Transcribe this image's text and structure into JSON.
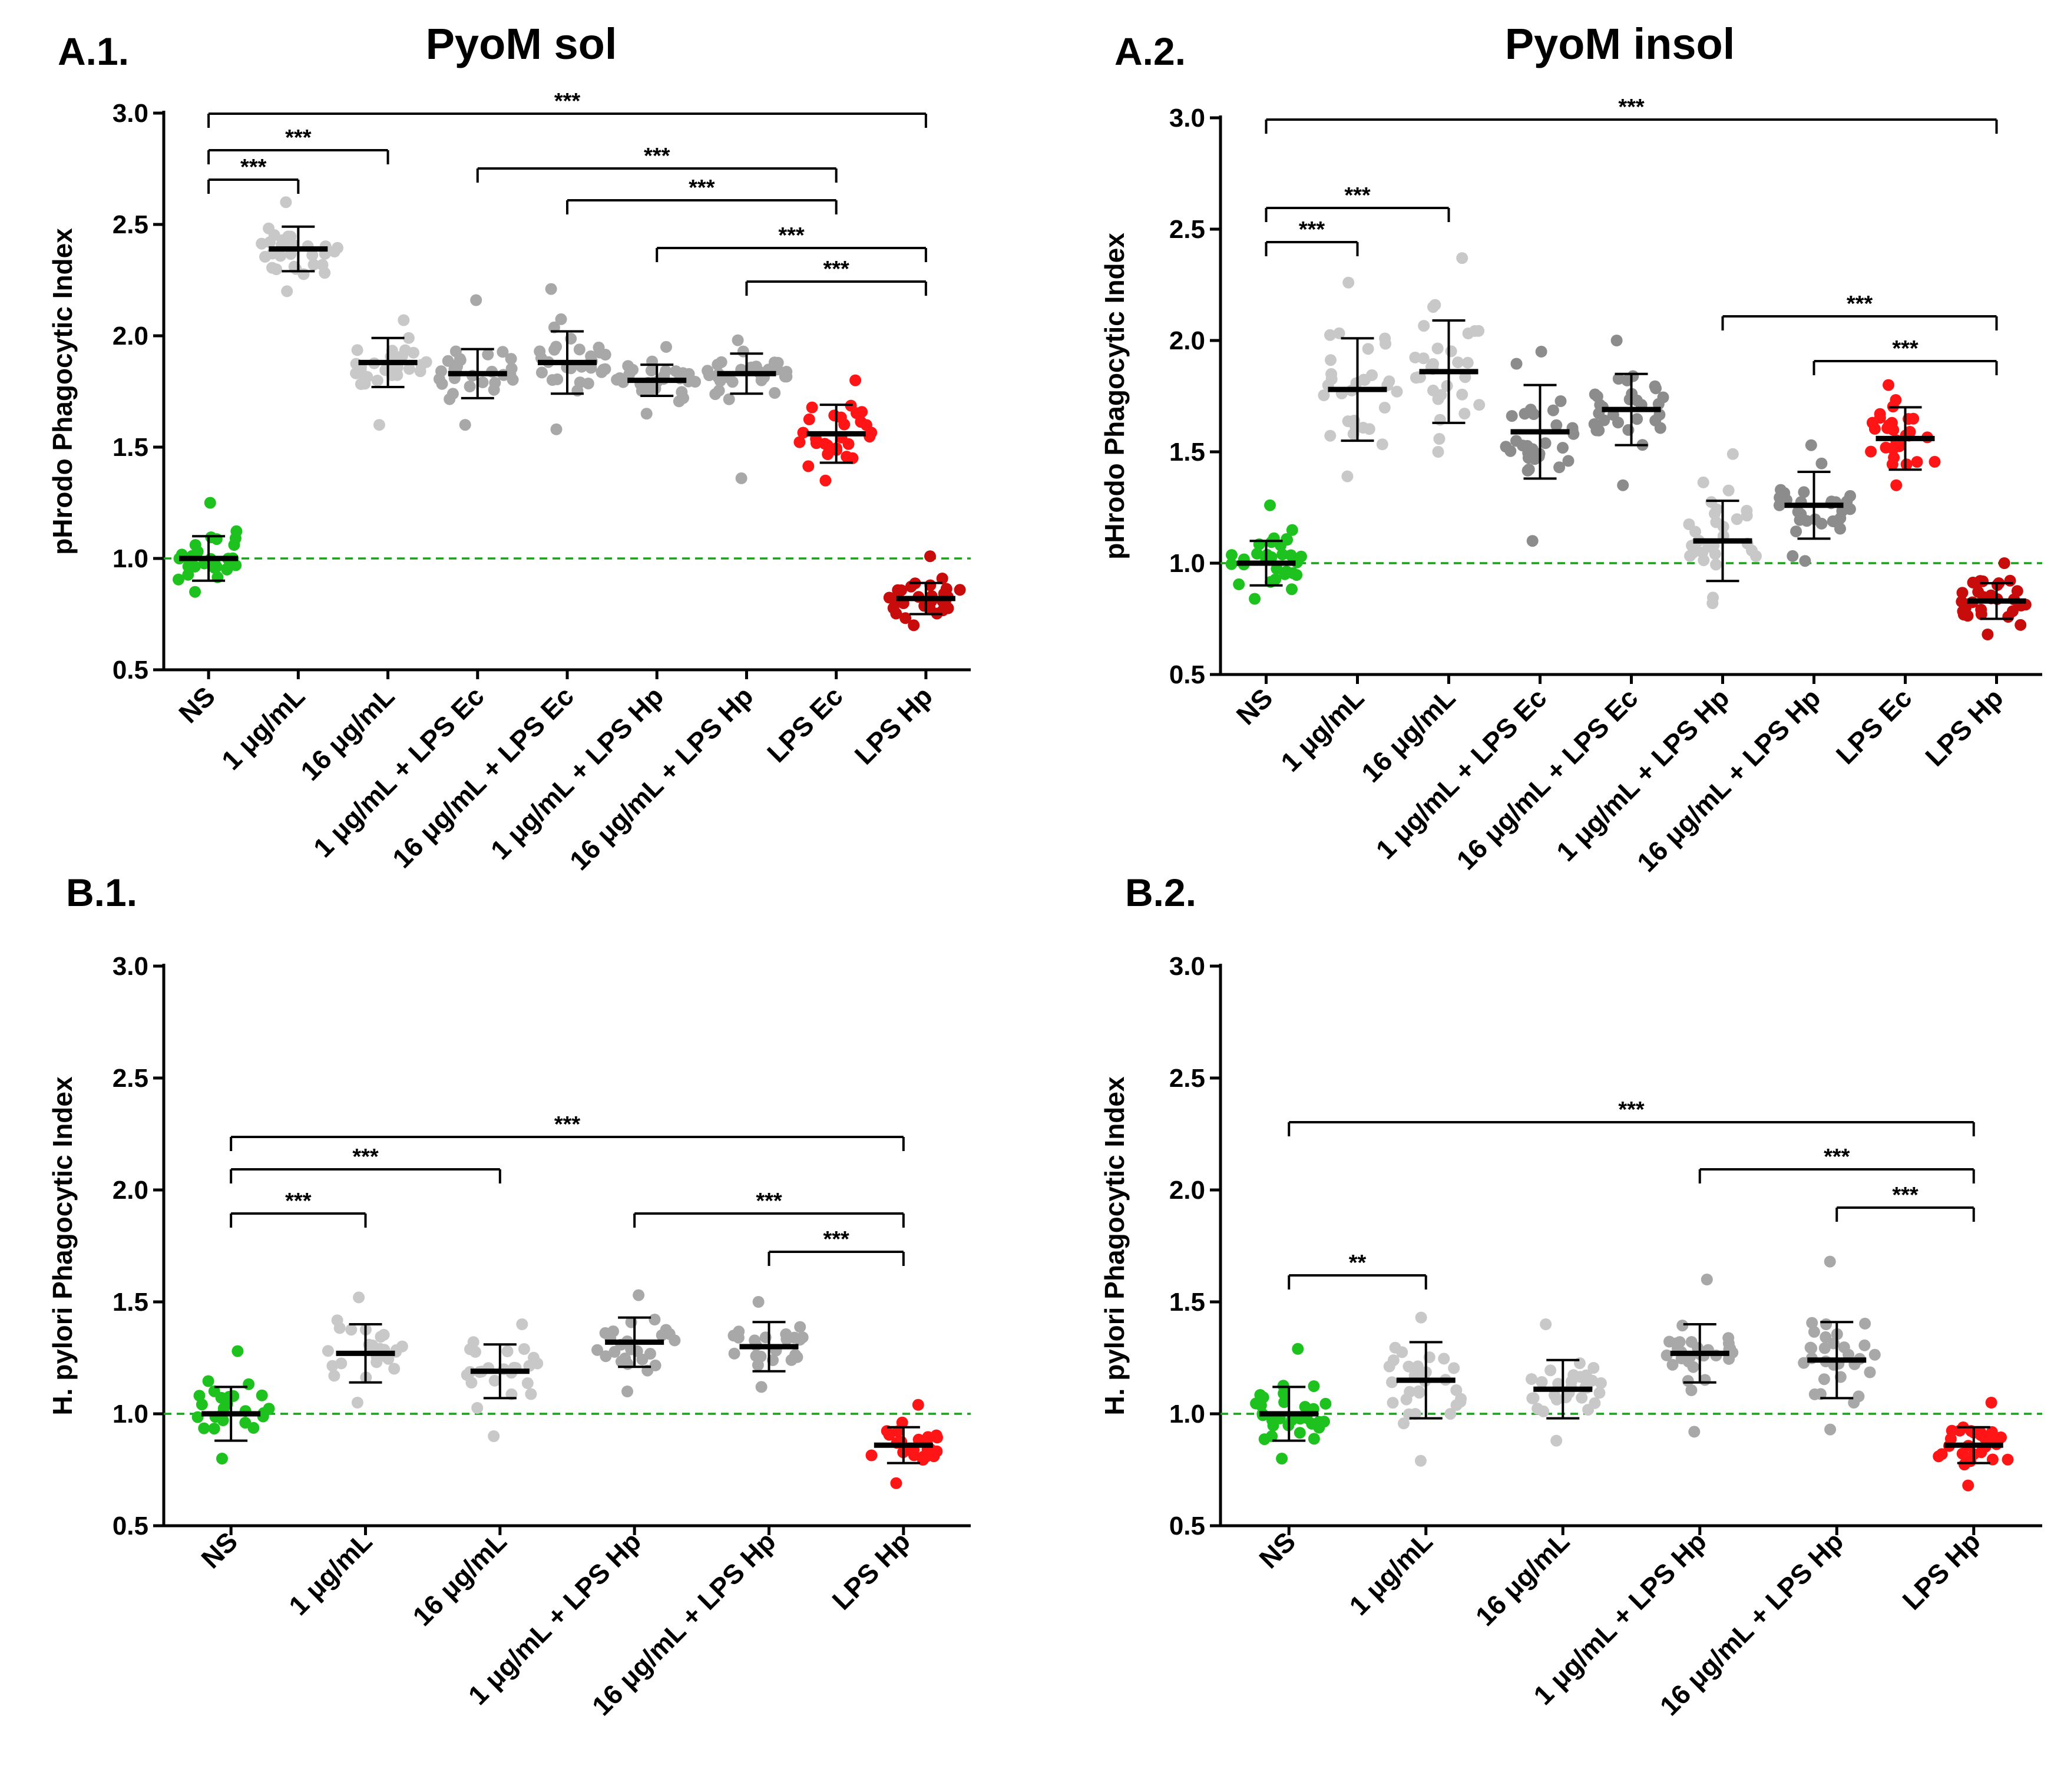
{
  "figure": {
    "panels": [
      "A.1.",
      "A.2.",
      "B.1.",
      "B.2."
    ]
  },
  "colors": {
    "green": "#1ec21e",
    "light_grey": "#c8c8c8",
    "mid_grey": "#a8a8a8",
    "dark_grey": "#8c8c8c",
    "red": "#ff1515",
    "dark_red": "#c80c0c",
    "axis": "#000000",
    "reference_line": "#1aa01a"
  },
  "chart_data": [
    {
      "panel": "A.1.",
      "type": "scatter",
      "title": "PyoM sol",
      "ylabel": "pHrodo Phagocytic Index",
      "xlabel": "",
      "ylim": [
        0.5,
        3.0
      ],
      "yticks": [
        "0.5",
        "1.0",
        "1.5",
        "2.0",
        "2.5",
        "3.0"
      ],
      "reference_line": 1.0,
      "categories": [
        "NS",
        "1 μg/mL",
        "16 μg/mL",
        "1 μg/mL + LPS Ec",
        "16 μg/mL + LPS Ec",
        "1 μg/mL + LPS Hp",
        "16 μg/mL + LPS Hp",
        "LPS Ec",
        "LPS Hp"
      ],
      "colors": [
        "green",
        "light_grey",
        "light_grey",
        "mid_grey",
        "mid_grey",
        "mid_grey",
        "mid_grey",
        "red",
        "dark_red"
      ],
      "mean": [
        1.0,
        2.39,
        1.88,
        1.83,
        1.88,
        1.8,
        1.83,
        1.56,
        0.82
      ],
      "sd": [
        0.1,
        0.1,
        0.11,
        0.11,
        0.14,
        0.07,
        0.09,
        0.13,
        0.07
      ],
      "range": [
        [
          0.85,
          1.25
        ],
        [
          2.2,
          2.6
        ],
        [
          1.6,
          2.07
        ],
        [
          1.6,
          2.16
        ],
        [
          1.58,
          2.21
        ],
        [
          1.65,
          1.95
        ],
        [
          1.36,
          1.98
        ],
        [
          1.35,
          1.8
        ],
        [
          0.7,
          1.01
        ]
      ],
      "n_points": 30,
      "significance": [
        {
          "from": 0,
          "to": 1,
          "label": "***"
        },
        {
          "from": 0,
          "to": 2,
          "label": "***"
        },
        {
          "from": 0,
          "to": 8,
          "label": "***"
        },
        {
          "from": 3,
          "to": 7,
          "label": "***"
        },
        {
          "from": 4,
          "to": 7,
          "label": "***"
        },
        {
          "from": 5,
          "to": 8,
          "label": "***"
        },
        {
          "from": 6,
          "to": 8,
          "label": "***"
        }
      ]
    },
    {
      "panel": "A.2.",
      "type": "scatter",
      "title": "PyoM insol",
      "ylabel": "pHrodo Phagocytic Index",
      "xlabel": "",
      "ylim": [
        0.5,
        3.0
      ],
      "yticks": [
        "0.5",
        "1.0",
        "1.5",
        "2.0",
        "2.5",
        "3.0"
      ],
      "reference_line": 1.0,
      "categories": [
        "NS",
        "1 μg/mL",
        "16 μg/mL",
        "1 μg/mL + LPS Ec",
        "16 μg/mL + LPS Ec",
        "1 μg/mL + LPS Hp",
        "16 μg/mL + LPS Hp",
        "LPS Ec",
        "LPS Hp"
      ],
      "colors": [
        "green",
        "light_grey",
        "light_grey",
        "dark_grey",
        "dark_grey",
        "light_grey",
        "dark_grey",
        "red",
        "dark_red"
      ],
      "mean": [
        1.0,
        1.78,
        1.86,
        1.59,
        1.69,
        1.1,
        1.26,
        1.56,
        0.83
      ],
      "sd": [
        0.1,
        0.23,
        0.23,
        0.21,
        0.16,
        0.18,
        0.15,
        0.14,
        0.08
      ],
      "range": [
        [
          0.84,
          1.26
        ],
        [
          1.39,
          2.26
        ],
        [
          1.5,
          2.37
        ],
        [
          1.1,
          1.95
        ],
        [
          1.35,
          2.0
        ],
        [
          0.82,
          1.49
        ],
        [
          1.01,
          1.53
        ],
        [
          1.35,
          1.8
        ],
        [
          0.68,
          1.0
        ]
      ],
      "n_points": 30,
      "significance": [
        {
          "from": 0,
          "to": 1,
          "label": "***"
        },
        {
          "from": 0,
          "to": 2,
          "label": "***"
        },
        {
          "from": 0,
          "to": 8,
          "label": "***"
        },
        {
          "from": 5,
          "to": 8,
          "label": "***"
        },
        {
          "from": 6,
          "to": 8,
          "label": "***"
        }
      ]
    },
    {
      "panel": "B.1.",
      "type": "scatter",
      "title": "",
      "ylabel": "H. pylori Phagocytic Index",
      "xlabel": "",
      "ylim": [
        0.5,
        3.0
      ],
      "yticks": [
        "0.5",
        "1.0",
        "1.5",
        "2.0",
        "2.5",
        "3.0"
      ],
      "reference_line": 1.0,
      "categories": [
        "NS",
        "1 μg/mL",
        "16 μg/mL",
        "1 μg/mL + LPS Hp",
        "16 μg/mL + LPS Hp",
        "LPS Hp"
      ],
      "colors": [
        "green",
        "light_grey",
        "light_grey",
        "mid_grey",
        "mid_grey",
        "red"
      ],
      "mean": [
        1.0,
        1.27,
        1.19,
        1.32,
        1.3,
        0.86
      ],
      "sd": [
        0.12,
        0.13,
        0.12,
        0.11,
        0.11,
        0.08
      ],
      "range": [
        [
          0.8,
          1.28
        ],
        [
          1.05,
          1.52
        ],
        [
          0.9,
          1.4
        ],
        [
          1.1,
          1.53
        ],
        [
          1.12,
          1.5
        ],
        [
          0.69,
          1.04
        ]
      ],
      "n_points": 25,
      "significance": [
        {
          "from": 0,
          "to": 1,
          "label": "***"
        },
        {
          "from": 0,
          "to": 2,
          "label": "***"
        },
        {
          "from": 0,
          "to": 5,
          "label": "***"
        },
        {
          "from": 3,
          "to": 5,
          "label": "***"
        },
        {
          "from": 4,
          "to": 5,
          "label": "***"
        }
      ]
    },
    {
      "panel": "B.2.",
      "type": "scatter",
      "title": "",
      "ylabel": "H. pylori Phagocytic Index",
      "xlabel": "",
      "ylim": [
        0.5,
        3.0
      ],
      "yticks": [
        "0.5",
        "1.0",
        "1.5",
        "2.0",
        "2.5",
        "3.0"
      ],
      "reference_line": 1.0,
      "categories": [
        "NS",
        "1 μg/mL",
        "16 μg/mL",
        "1 μg/mL + LPS Hp",
        "16 μg/mL + LPS Hp",
        "LPS Hp"
      ],
      "colors": [
        "green",
        "light_grey",
        "light_grey",
        "mid_grey",
        "mid_grey",
        "red"
      ],
      "mean": [
        1.0,
        1.15,
        1.11,
        1.27,
        1.24,
        0.86
      ],
      "sd": [
        0.12,
        0.17,
        0.13,
        0.13,
        0.17,
        0.08
      ],
      "range": [
        [
          0.8,
          1.29
        ],
        [
          0.79,
          1.43
        ],
        [
          0.88,
          1.4
        ],
        [
          0.92,
          1.6
        ],
        [
          0.93,
          1.68
        ],
        [
          0.68,
          1.05
        ]
      ],
      "n_points": 30,
      "significance": [
        {
          "from": 0,
          "to": 1,
          "label": "**"
        },
        {
          "from": 0,
          "to": 5,
          "label": "***"
        },
        {
          "from": 3,
          "to": 5,
          "label": "***"
        },
        {
          "from": 4,
          "to": 5,
          "label": "***"
        }
      ]
    }
  ]
}
